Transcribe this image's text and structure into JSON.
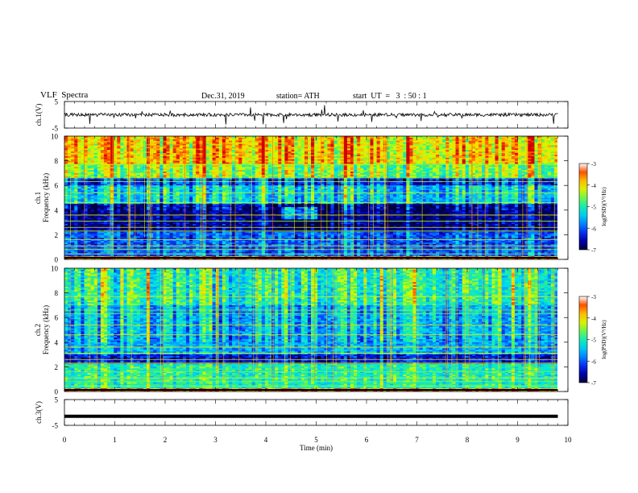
{
  "header": {
    "title": "VLF  Spectra",
    "date": "Dec.31, 2019",
    "station": "station= ATH",
    "start_ut": "start  UT  =   3  : 50 : 1"
  },
  "colors": {
    "waveform": "#000000",
    "colormap": [
      "#00003a",
      "#0000b4",
      "#0a3cff",
      "#00a0ff",
      "#00e6e6",
      "#30ee80",
      "#c8ff00",
      "#ffd200",
      "#ff5a00",
      "#d20000",
      "#ffffff"
    ]
  },
  "chart_data": [
    {
      "type": "line",
      "panel": "ch1-waveform",
      "ylabel": "ch.1(V)",
      "ylim": [
        -5,
        5
      ],
      "yticks": [
        "5",
        "-5"
      ],
      "xlim": [
        0,
        10
      ],
      "description_values": {
        "mean": 0,
        "typical_amplitude": 1.2
      }
    },
    {
      "type": "heatmap",
      "panel": "ch1-spectrogram",
      "ylabel": "ch.1\nFrequency  (kHz)",
      "ylabel_lines": [
        "ch.1",
        "Frequency  (kHz)"
      ],
      "ylim": [
        0,
        10
      ],
      "yticks": [
        "0",
        "2",
        "4",
        "6",
        "8",
        "10"
      ],
      "xlim": [
        0,
        9.8
      ],
      "colorbar": {
        "label": "log(PSD)(V²/Hz)",
        "range": [
          -7,
          -3
        ],
        "ticks": [
          "-3",
          "-4",
          "-5",
          "-6",
          "-7"
        ]
      },
      "bands_khz": [
        {
          "from": 0,
          "to": 0.3,
          "level": -3.6
        },
        {
          "from": 0.3,
          "to": 2.3,
          "level": -6.0
        },
        {
          "from": 2.3,
          "to": 4.5,
          "level": -6.7
        },
        {
          "from": 4.5,
          "to": 6.0,
          "level": -5.4
        },
        {
          "from": 6.0,
          "to": 6.6,
          "level": -6.2
        },
        {
          "from": 6.6,
          "to": 7.8,
          "level": -4.6
        },
        {
          "from": 7.8,
          "to": 10,
          "level": -4.0
        }
      ]
    },
    {
      "type": "heatmap",
      "panel": "ch2-spectrogram",
      "ylabel": "ch.2\nFrequency  (kHz)",
      "ylabel_lines": [
        "ch.2",
        "Frequency  (kHz)"
      ],
      "ylim": [
        0,
        10
      ],
      "yticks": [
        "0",
        "2",
        "4",
        "6",
        "8",
        "10"
      ],
      "xlim": [
        0,
        9.8
      ],
      "colorbar": {
        "label": "log(PSD)(V²/Hz)",
        "range": [
          -7,
          -3
        ],
        "ticks": [
          "-3",
          "-4",
          "-5",
          "-6",
          "-7"
        ]
      },
      "bands_khz": [
        {
          "from": 0,
          "to": 0.3,
          "level": -3.6
        },
        {
          "from": 0.3,
          "to": 2.3,
          "level": -5.0
        },
        {
          "from": 2.3,
          "to": 3.0,
          "level": -6.4
        },
        {
          "from": 3.0,
          "to": 4.5,
          "level": -5.6
        },
        {
          "from": 4.5,
          "to": 7.0,
          "level": -5.5
        },
        {
          "from": 7.0,
          "to": 10,
          "level": -5.0
        }
      ]
    },
    {
      "type": "line",
      "panel": "ch3-waveform",
      "ylabel": "ch.3(V)",
      "ylim": [
        -5,
        5
      ],
      "yticks": [
        "5",
        "-5"
      ],
      "xlim": [
        0,
        10
      ],
      "xlabel": "Time  (min)",
      "xticks": [
        "0",
        "1",
        "2",
        "3",
        "4",
        "5",
        "6",
        "7",
        "8",
        "9",
        "10"
      ],
      "constant_value": -1.5
    }
  ]
}
